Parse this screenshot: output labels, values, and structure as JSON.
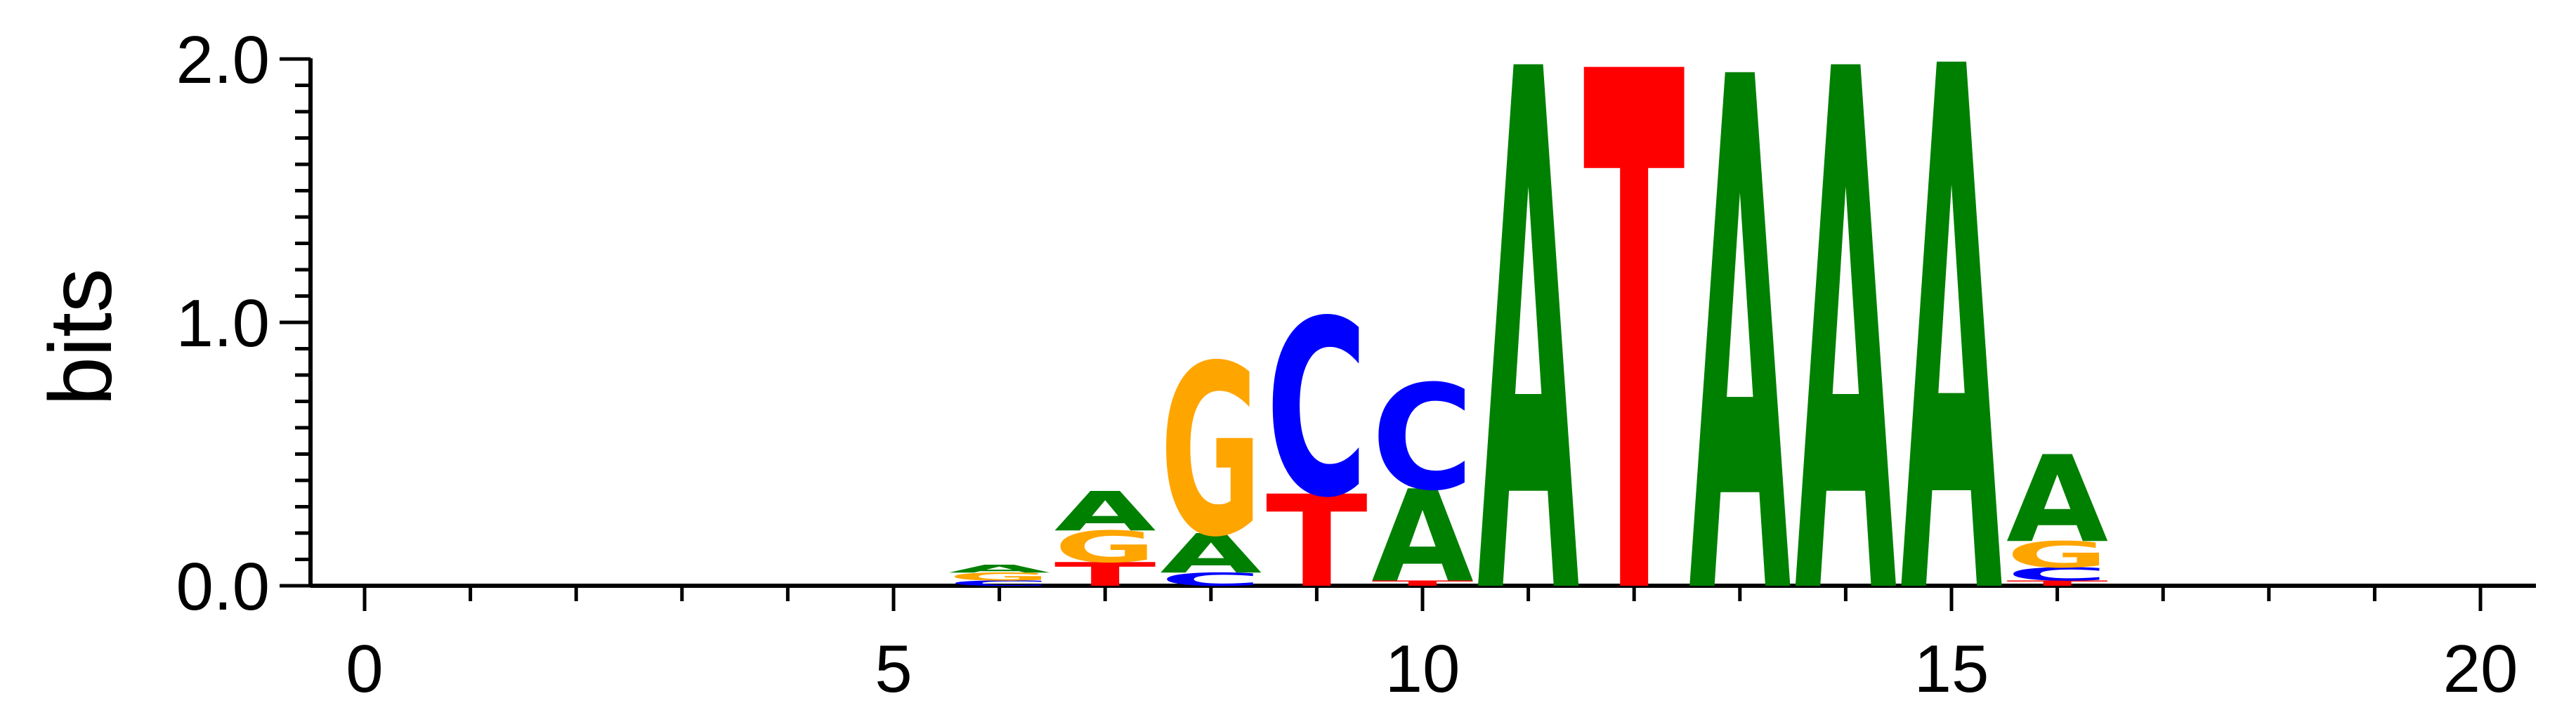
{
  "chart_data": {
    "type": "sequence-logo",
    "ylabel": "bits",
    "xlim": [
      0,
      20
    ],
    "ylim": [
      0,
      2
    ],
    "x_ticks": [
      "0",
      "5",
      "10",
      "15",
      "20"
    ],
    "y_ticks": [
      "0.0",
      "1.0",
      "2.0"
    ],
    "y_tick_values": [
      0,
      1,
      2
    ],
    "x_tick_values": [
      0,
      5,
      10,
      15,
      20
    ],
    "colors": {
      "A": "#008000",
      "C": "#0000ff",
      "G": "#ffa500",
      "T": "#ff0000"
    },
    "positions": [
      {
        "x": 6,
        "letters": [
          {
            "base": "C",
            "height": 0.02
          },
          {
            "base": "G",
            "height": 0.03
          },
          {
            "base": "A",
            "height": 0.03
          }
        ]
      },
      {
        "x": 7,
        "letters": [
          {
            "base": "T",
            "height": 0.09
          },
          {
            "base": "G",
            "height": 0.12
          },
          {
            "base": "A",
            "height": 0.15
          }
        ]
      },
      {
        "x": 8,
        "letters": [
          {
            "base": "C",
            "height": 0.05
          },
          {
            "base": "A",
            "height": 0.15
          },
          {
            "base": "G",
            "height": 0.65
          }
        ]
      },
      {
        "x": 9,
        "letters": [
          {
            "base": "T",
            "height": 0.35
          },
          {
            "base": "C",
            "height": 0.67
          }
        ]
      },
      {
        "x": 10,
        "letters": [
          {
            "base": "T",
            "height": 0.02
          },
          {
            "base": "A",
            "height": 0.35
          },
          {
            "base": "C",
            "height": 0.4
          }
        ]
      },
      {
        "x": 11,
        "letters": [
          {
            "base": "A",
            "height": 1.98
          }
        ]
      },
      {
        "x": 12,
        "letters": [
          {
            "base": "T",
            "height": 1.97
          }
        ]
      },
      {
        "x": 13,
        "letters": [
          {
            "base": "A",
            "height": 1.95
          }
        ]
      },
      {
        "x": 14,
        "letters": [
          {
            "base": "A",
            "height": 1.98
          }
        ]
      },
      {
        "x": 15,
        "letters": [
          {
            "base": "A",
            "height": 1.99
          }
        ]
      },
      {
        "x": 16,
        "letters": [
          {
            "base": "T",
            "height": 0.02
          },
          {
            "base": "C",
            "height": 0.05
          },
          {
            "base": "G",
            "height": 0.1
          },
          {
            "base": "A",
            "height": 0.33
          }
        ]
      }
    ]
  }
}
